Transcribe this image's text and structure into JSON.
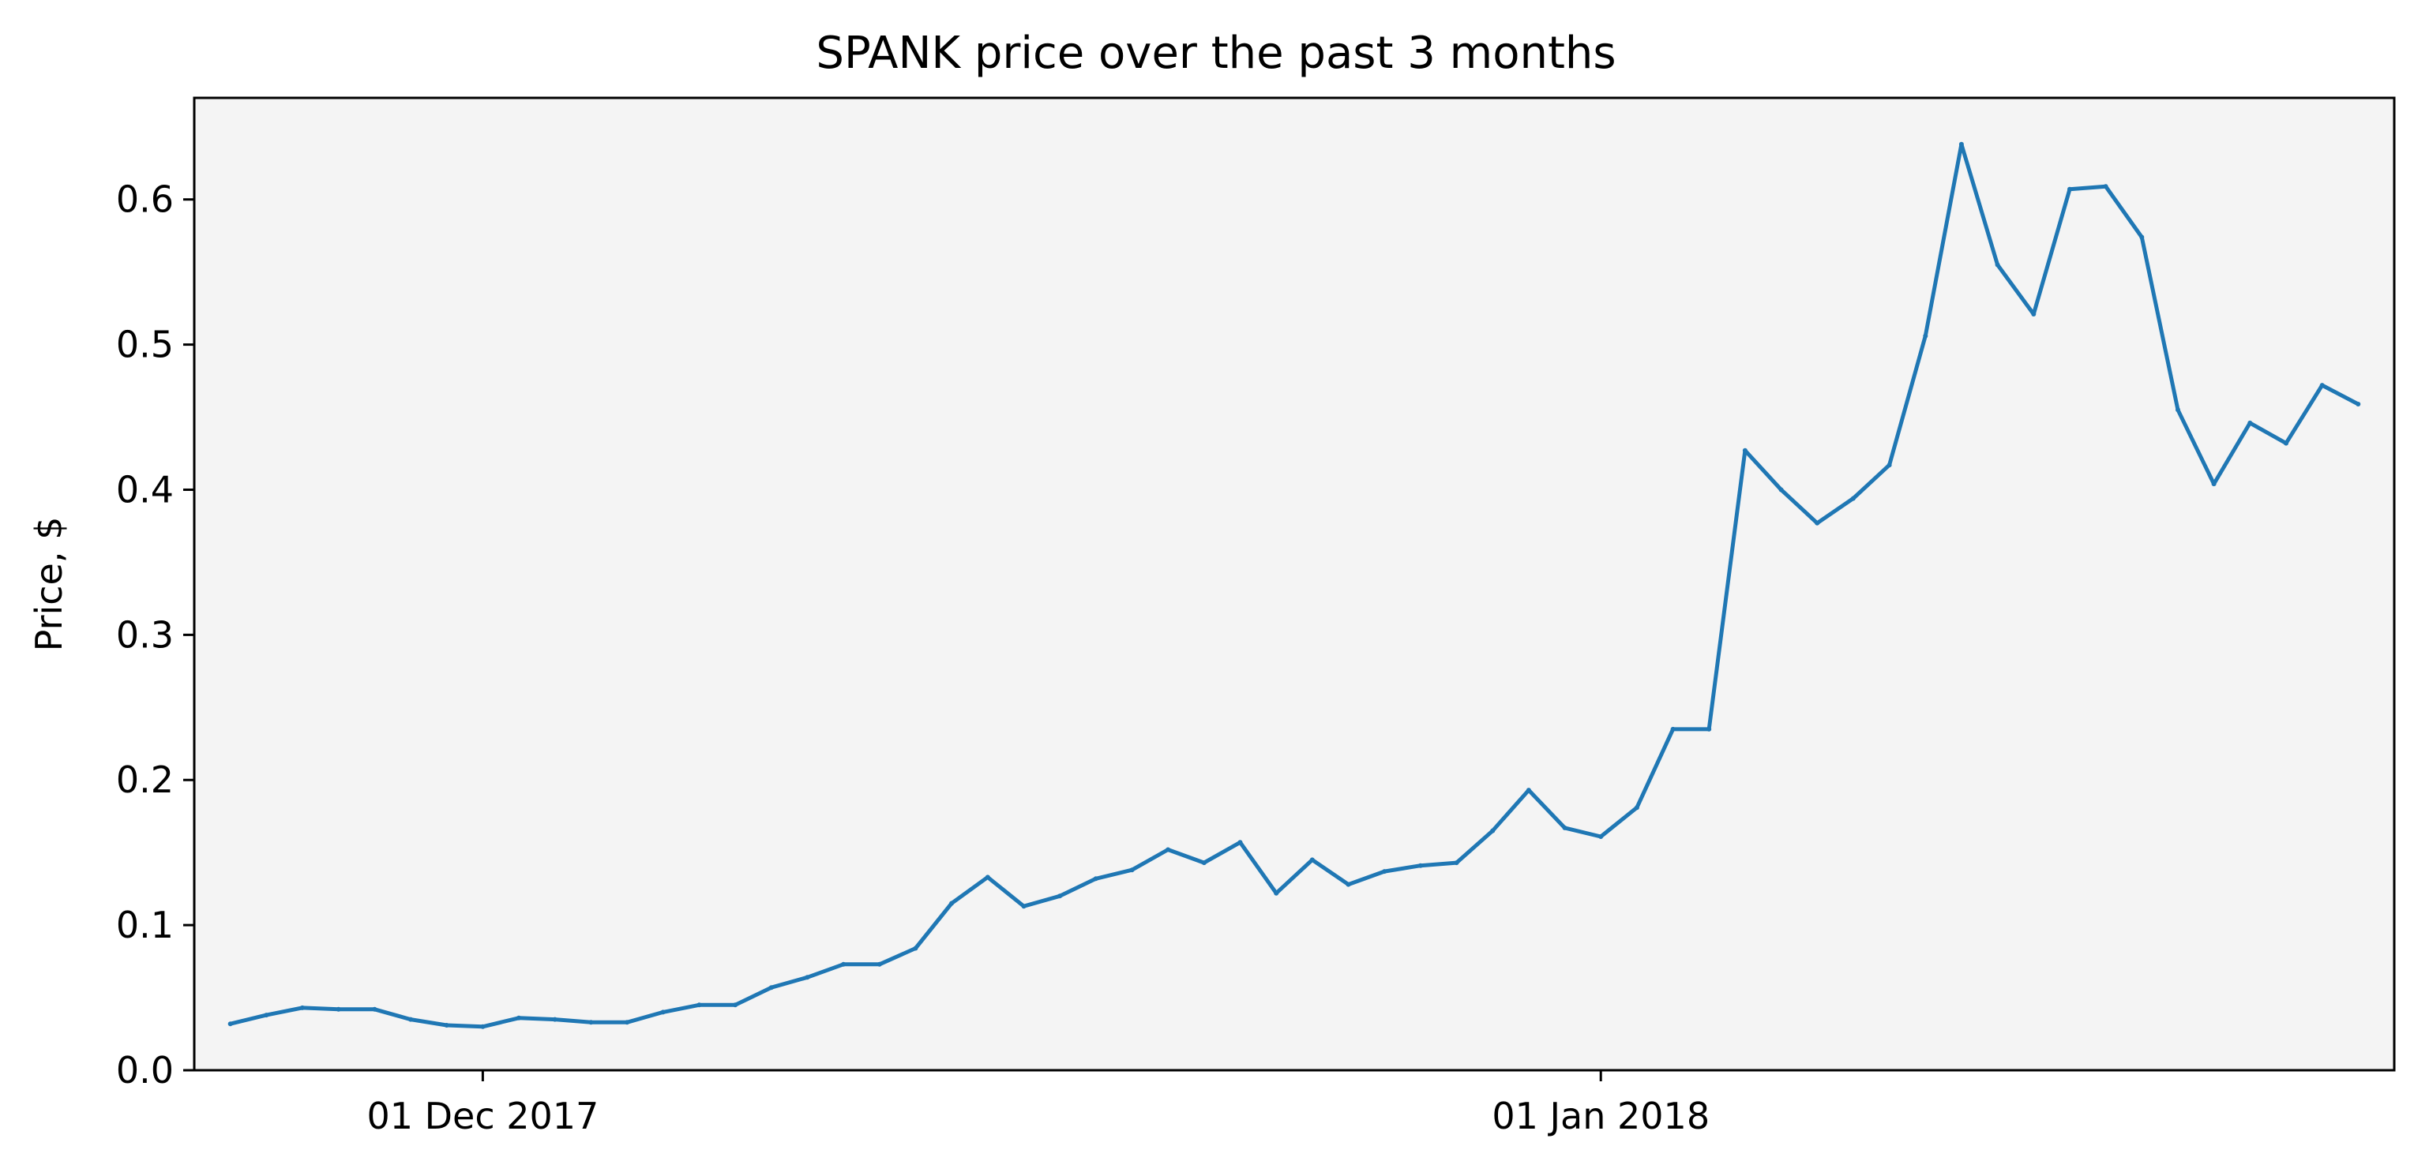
{
  "chart_data": {
    "type": "line",
    "title": "SPANK price over the past 3 months",
    "xlabel": "",
    "ylabel": "Price, $",
    "x_range": [
      "2017-11-23",
      "2018-01-23"
    ],
    "ylim": [
      0,
      0.67
    ],
    "y_ticks": [
      {
        "value": 0.0,
        "label": "0.0"
      },
      {
        "value": 0.1,
        "label": "0.1"
      },
      {
        "value": 0.2,
        "label": "0.2"
      },
      {
        "value": 0.3,
        "label": "0.3"
      },
      {
        "value": 0.4,
        "label": "0.4"
      },
      {
        "value": 0.5,
        "label": "0.5"
      },
      {
        "value": 0.6,
        "label": "0.6"
      }
    ],
    "x_ticks": [
      {
        "value": "2017-12-01",
        "label": "01 Dec 2017"
      },
      {
        "value": "2018-01-01",
        "label": "01 Jan 2018"
      }
    ],
    "grid": false,
    "legend": "none",
    "colors": {
      "line": "#1f77b4",
      "plot_background": "#f4f4f4"
    },
    "series": [
      {
        "x": [
          "2017-11-24",
          "2017-11-25",
          "2017-11-26",
          "2017-11-27",
          "2017-11-28",
          "2017-11-29",
          "2017-11-30",
          "2017-12-01",
          "2017-12-02",
          "2017-12-03",
          "2017-12-04",
          "2017-12-05",
          "2017-12-06",
          "2017-12-07",
          "2017-12-08",
          "2017-12-09",
          "2017-12-10",
          "2017-12-11",
          "2017-12-12",
          "2017-12-13",
          "2017-12-14",
          "2017-12-15",
          "2017-12-16",
          "2017-12-17",
          "2017-12-18",
          "2017-12-19",
          "2017-12-20",
          "2017-12-21",
          "2017-12-22",
          "2017-12-23",
          "2017-12-24",
          "2017-12-25",
          "2017-12-26",
          "2017-12-27",
          "2017-12-28",
          "2017-12-29",
          "2017-12-30",
          "2017-12-31",
          "2018-01-01",
          "2018-01-02",
          "2018-01-03",
          "2018-01-04",
          "2018-01-05",
          "2018-01-06",
          "2018-01-07",
          "2018-01-08",
          "2018-01-09",
          "2018-01-10",
          "2018-01-11",
          "2018-01-12",
          "2018-01-13",
          "2018-01-14",
          "2018-01-15",
          "2018-01-16",
          "2018-01-17",
          "2018-01-18",
          "2018-01-19",
          "2018-01-20",
          "2018-01-21",
          "2018-01-22"
        ],
        "values": [
          0.032,
          0.038,
          0.043,
          0.042,
          0.042,
          0.035,
          0.031,
          0.03,
          0.036,
          0.035,
          0.033,
          0.033,
          0.04,
          0.045,
          0.045,
          0.057,
          0.064,
          0.073,
          0.073,
          0.084,
          0.115,
          0.133,
          0.113,
          0.12,
          0.132,
          0.138,
          0.152,
          0.143,
          0.157,
          0.122,
          0.145,
          0.128,
          0.137,
          0.141,
          0.143,
          0.165,
          0.193,
          0.167,
          0.161,
          0.181,
          0.235,
          0.235,
          0.427,
          0.4,
          0.377,
          0.394,
          0.417,
          0.506,
          0.638,
          0.555,
          0.521,
          0.607,
          0.609,
          0.574,
          0.455,
          0.404,
          0.446,
          0.432,
          0.472,
          0.459
        ]
      }
    ]
  }
}
